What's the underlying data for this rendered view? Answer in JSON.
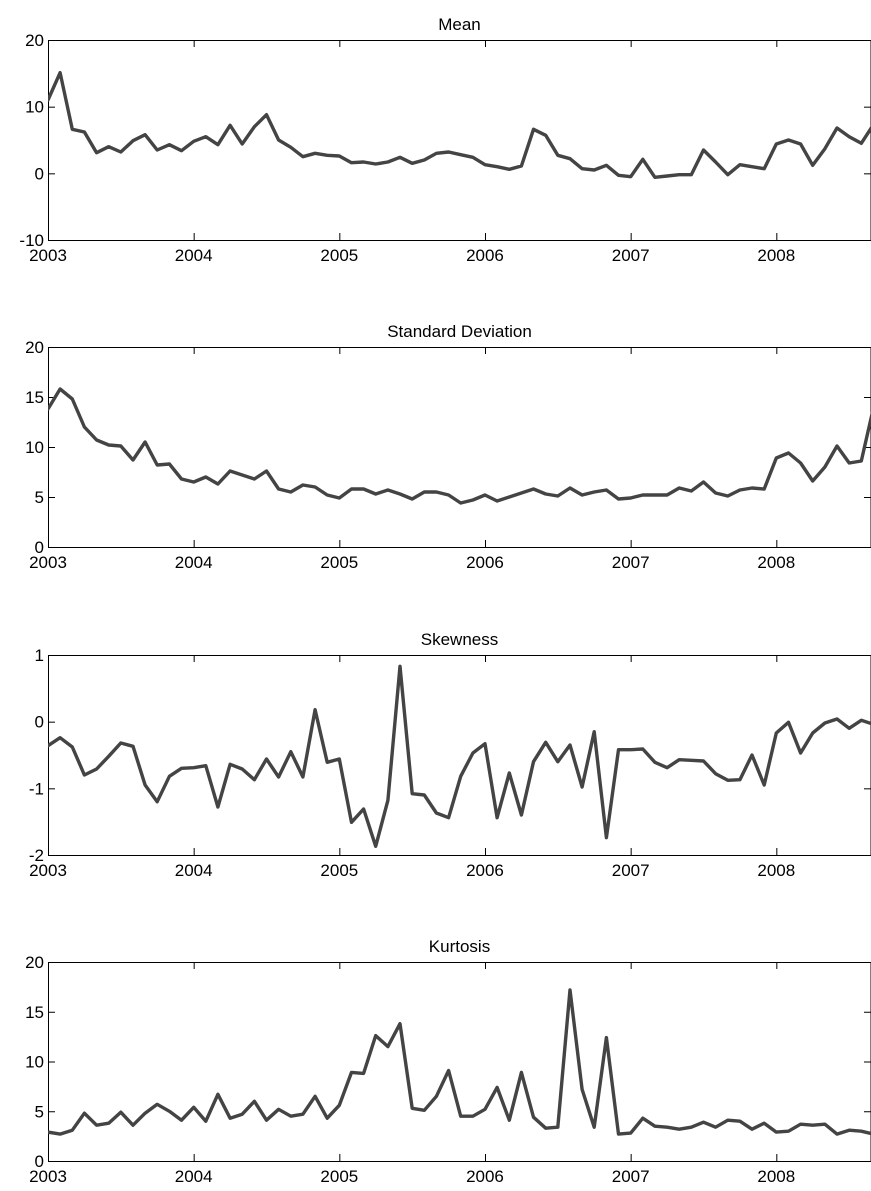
{
  "chart_data": [
    {
      "type": "line",
      "title": "Mean",
      "xlabel": "",
      "ylabel": "",
      "xlim": [
        2003.0,
        2008.65
      ],
      "ylim": [
        -10,
        20
      ],
      "xticks": [
        2003,
        2004,
        2005,
        2006,
        2007,
        2008
      ],
      "xtick_labels": [
        "2003",
        "2004",
        "2005",
        "2006",
        "2007",
        "2008"
      ],
      "yticks": [
        -10,
        0,
        10,
        20
      ],
      "ytick_labels": [
        "-10",
        "0",
        "10",
        "20"
      ],
      "grid": false,
      "color": "#444444",
      "x_start": 2003.0,
      "x_step_months": 1,
      "values": [
        11,
        15.1,
        6.6,
        6.2,
        3.1,
        4.0,
        3.2,
        4.9,
        5.8,
        3.5,
        4.3,
        3.4,
        4.8,
        5.5,
        4.3,
        7.2,
        4.4,
        7.0,
        8.8,
        5.0,
        3.9,
        2.5,
        3.0,
        2.7,
        2.6,
        1.6,
        1.7,
        1.4,
        1.7,
        2.4,
        1.5,
        2.0,
        3.0,
        3.2,
        2.8,
        2.4,
        1.3,
        1.0,
        0.6,
        1.1,
        6.6,
        5.7,
        2.7,
        2.2,
        0.7,
        0.5,
        1.2,
        -0.3,
        -0.5,
        2.1,
        -0.6,
        -0.4,
        -0.2,
        -0.2,
        3.5,
        1.7,
        -0.2,
        1.3,
        1.0,
        0.7,
        4.4,
        5.0,
        4.4,
        1.2,
        3.7,
        6.8,
        5.5,
        4.5,
        7.3
      ]
    },
    {
      "type": "line",
      "title": "Standard Deviation",
      "xlabel": "",
      "ylabel": "",
      "xlim": [
        2003.0,
        2008.65
      ],
      "ylim": [
        0,
        20
      ],
      "xticks": [
        2003,
        2004,
        2005,
        2006,
        2007,
        2008
      ],
      "xtick_labels": [
        "2003",
        "2004",
        "2005",
        "2006",
        "2007",
        "2008"
      ],
      "yticks": [
        0,
        5,
        10,
        15,
        20
      ],
      "ytick_labels": [
        "0",
        "5",
        "10",
        "15",
        "20"
      ],
      "grid": false,
      "color": "#444444",
      "x_start": 2003.0,
      "x_step_months": 1,
      "values": [
        13.8,
        15.8,
        14.8,
        12.0,
        10.7,
        10.2,
        10.1,
        8.7,
        10.5,
        8.2,
        8.3,
        6.8,
        6.5,
        7.0,
        6.3,
        7.6,
        7.2,
        6.8,
        7.6,
        5.8,
        5.5,
        6.2,
        6.0,
        5.2,
        4.9,
        5.8,
        5.8,
        5.3,
        5.7,
        5.3,
        4.8,
        5.5,
        5.5,
        5.2,
        4.4,
        4.7,
        5.2,
        4.6,
        5.0,
        5.4,
        5.8,
        5.3,
        5.1,
        5.9,
        5.2,
        5.5,
        5.7,
        4.8,
        4.9,
        5.2,
        5.2,
        5.2,
        5.9,
        5.6,
        6.5,
        5.4,
        5.1,
        5.7,
        5.9,
        5.8,
        8.9,
        9.4,
        8.4,
        6.6,
        8.0,
        10.1,
        8.4,
        8.6,
        13.9
      ]
    },
    {
      "type": "line",
      "title": "Skewness",
      "xlabel": "",
      "ylabel": "",
      "xlim": [
        2003.0,
        2008.65
      ],
      "ylim": [
        -2,
        1
      ],
      "xticks": [
        2003,
        2004,
        2005,
        2006,
        2007,
        2008
      ],
      "xtick_labels": [
        "2003",
        "2004",
        "2005",
        "2006",
        "2007",
        "2008"
      ],
      "yticks": [
        -2,
        -1,
        0,
        1
      ],
      "ytick_labels": [
        "-2",
        "-1",
        "0",
        "1"
      ],
      "grid": false,
      "color": "#444444",
      "x_start": 2003.0,
      "x_step_months": 1,
      "values": [
        -0.36,
        -0.24,
        -0.38,
        -0.8,
        -0.71,
        -0.52,
        -0.32,
        -0.37,
        -0.95,
        -1.2,
        -0.82,
        -0.7,
        -0.69,
        -0.66,
        -1.28,
        -0.64,
        -0.71,
        -0.87,
        -0.56,
        -0.83,
        -0.45,
        -0.83,
        0.18,
        -0.61,
        -0.56,
        -1.51,
        -1.31,
        -1.87,
        -1.18,
        0.83,
        -1.08,
        -1.1,
        -1.37,
        -1.44,
        -0.82,
        -0.47,
        -0.33,
        -1.44,
        -0.77,
        -1.4,
        -0.6,
        -0.31,
        -0.6,
        -0.35,
        -0.98,
        -0.15,
        -1.74,
        -0.42,
        -0.42,
        -0.41,
        -0.61,
        -0.69,
        -0.57,
        -0.58,
        -0.59,
        -0.78,
        -0.88,
        -0.87,
        -0.5,
        -0.95,
        -0.17,
        -0.01,
        -0.47,
        -0.17,
        -0.02,
        0.04,
        -0.1,
        0.02,
        -0.04
      ]
    },
    {
      "type": "line",
      "title": "Kurtosis",
      "xlabel": "",
      "ylabel": "",
      "xlim": [
        2003.0,
        2008.65
      ],
      "ylim": [
        0,
        20
      ],
      "xticks": [
        2003,
        2004,
        2005,
        2006,
        2007,
        2008
      ],
      "xtick_labels": [
        "2003",
        "2004",
        "2005",
        "2006",
        "2007",
        "2008"
      ],
      "yticks": [
        0,
        5,
        10,
        15,
        20
      ],
      "ytick_labels": [
        "0",
        "5",
        "10",
        "15",
        "20"
      ],
      "grid": false,
      "color": "#444444",
      "x_start": 2003.0,
      "x_step_months": 1,
      "values": [
        2.9,
        2.7,
        3.1,
        4.8,
        3.6,
        3.8,
        4.9,
        3.6,
        4.8,
        5.7,
        5.0,
        4.1,
        5.4,
        4.0,
        6.7,
        4.3,
        4.7,
        6.0,
        4.1,
        5.2,
        4.5,
        4.7,
        6.5,
        4.3,
        5.6,
        8.9,
        8.8,
        12.6,
        11.5,
        13.8,
        5.3,
        5.1,
        6.5,
        9.1,
        4.5,
        4.5,
        5.2,
        7.4,
        4.1,
        8.9,
        4.4,
        3.3,
        3.4,
        17.2,
        7.2,
        3.4,
        12.4,
        2.7,
        2.8,
        4.3,
        3.5,
        3.4,
        3.2,
        3.4,
        3.9,
        3.4,
        4.1,
        4.0,
        3.2,
        3.8,
        2.9,
        3.0,
        3.7,
        3.6,
        3.7,
        2.7,
        3.1,
        3.0,
        2.7
      ]
    }
  ]
}
